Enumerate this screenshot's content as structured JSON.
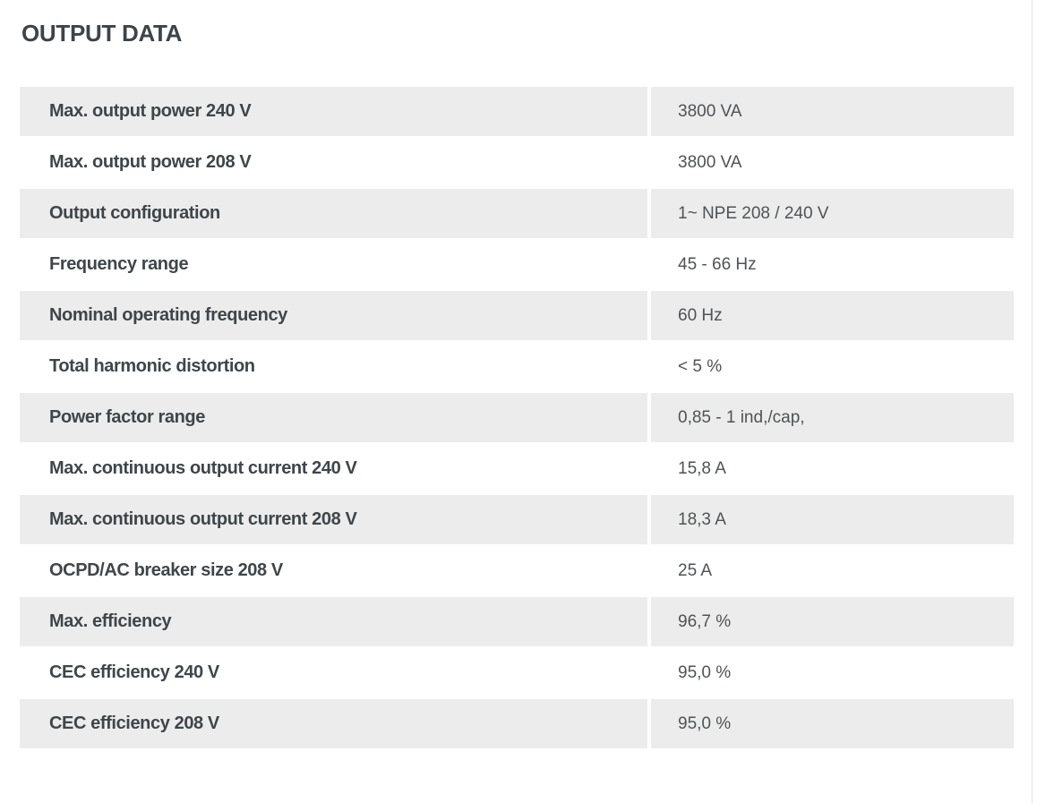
{
  "page": {
    "title": "OUTPUT DATA"
  },
  "style": {
    "stripe_color": "#ececec",
    "label_text_color": "#3e464b",
    "value_text_color": "#4d5357",
    "title_color": "#3d4449",
    "divider_color": "#e2e2e2"
  },
  "table": {
    "rows": [
      {
        "label": "Max. output power 240 V",
        "value": "3800 VA"
      },
      {
        "label": "Max. output power 208 V",
        "value": "3800 VA"
      },
      {
        "label": "Output configuration",
        "value": "1~ NPE 208 / 240 V"
      },
      {
        "label": "Frequency range",
        "value": "45 - 66 Hz"
      },
      {
        "label": "Nominal operating frequency",
        "value": "60 Hz"
      },
      {
        "label": "Total harmonic distortion",
        "value": "< 5 %"
      },
      {
        "label": "Power factor range",
        "value": "0,85 - 1 ind,/cap,"
      },
      {
        "label": "Max. continuous output current 240 V",
        "value": "15,8 A"
      },
      {
        "label": "Max. continuous output current 208 V",
        "value": "18,3 A"
      },
      {
        "label": "OCPD/AC breaker size 208 V",
        "value": "25 A"
      },
      {
        "label": "Max. efficiency",
        "value": "96,7 %"
      },
      {
        "label": "CEC efficiency 240 V",
        "value": "95,0 %"
      },
      {
        "label": "CEC efficiency 208 V",
        "value": "95,0 %"
      }
    ]
  }
}
